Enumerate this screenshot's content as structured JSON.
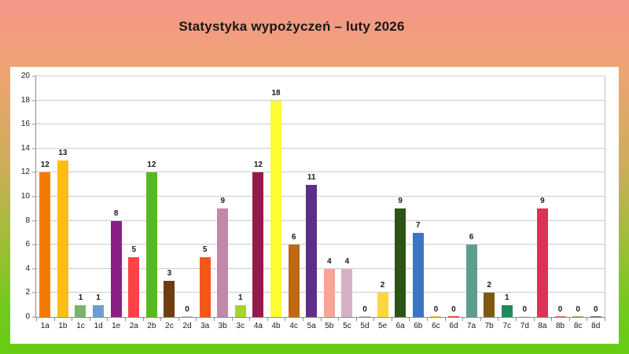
{
  "title": "Statystyka wypożyczeń – luty 2026",
  "background": {
    "gradient_stops": [
      [
        0,
        "#f5968a"
      ],
      [
        20,
        "#eda473"
      ],
      [
        45,
        "#cfac5b"
      ],
      [
        68,
        "#9fbe37"
      ],
      [
        88,
        "#72ca1a"
      ],
      [
        100,
        "#66cd12"
      ]
    ],
    "panel_color": "#ffffff",
    "grid_color": "#cccccc",
    "axis_color": "#8f8f8f",
    "text_color": "#1a1a1a"
  },
  "chart_data": {
    "type": "bar",
    "title": "Statystyka wypożyczeń – luty 2026",
    "xlabel": "",
    "ylabel": "",
    "ylim": [
      0,
      20
    ],
    "ytick_step": 2,
    "grid": true,
    "legend": false,
    "data_labels": true,
    "categories": [
      "1a",
      "1b",
      "1c",
      "1d",
      "1e",
      "2a",
      "2b",
      "2c",
      "2d",
      "3a",
      "3b",
      "3c",
      "4a",
      "4b",
      "4c",
      "5a",
      "5b",
      "5c",
      "5d",
      "5e",
      "6a",
      "6b",
      "6c",
      "6d",
      "7a",
      "7b",
      "7c",
      "7d",
      "8a",
      "8b",
      "8c",
      "8d"
    ],
    "values": [
      12,
      13,
      1,
      1,
      8,
      5,
      12,
      3,
      0,
      5,
      9,
      1,
      12,
      18,
      6,
      11,
      4,
      4,
      0,
      2,
      9,
      7,
      0,
      0,
      6,
      2,
      1,
      0,
      9,
      0,
      0,
      0
    ],
    "bar_colors": [
      "#f57b00",
      "#fcbf0f",
      "#7cb46a",
      "#6d9ed1",
      "#8a2085",
      "#fa4247",
      "#58b823",
      "#6f3e10",
      "#b4c4da",
      "#f25716",
      "#c088ab",
      "#a3d52c",
      "#96194c",
      "#fcfc30",
      "#c06812",
      "#5d2e87",
      "#f5a694",
      "#d7b0c8",
      "#b3b3b3",
      "#fcd640",
      "#2d5416",
      "#3c76c2",
      "#f0c020",
      "#e23333",
      "#5d9e8f",
      "#7d5812",
      "#1e8a5e",
      "#d9d9d9",
      "#d93355",
      "#e0604a",
      "#b0a050",
      "#606060"
    ]
  }
}
